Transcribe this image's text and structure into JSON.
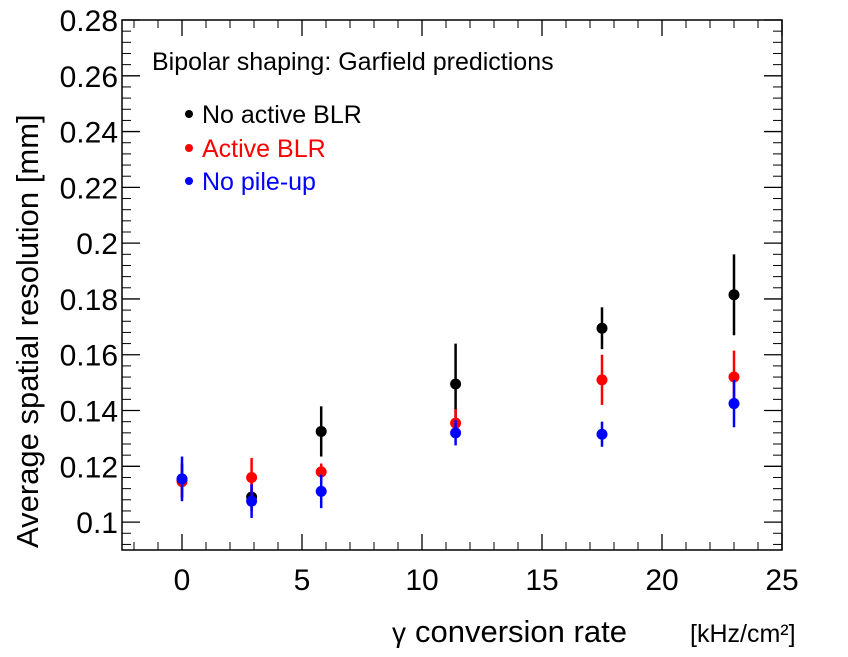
{
  "chart_data": {
    "type": "scatter",
    "title": "Bipolar shaping: Garfield predictions",
    "xlabel_symbol": "γ",
    "xlabel": "conversion rate",
    "xlabel_unit": "[kHz/cm²]",
    "ylabel": "Average spatial resolution [mm]",
    "xlim": [
      -2.5,
      25
    ],
    "ylim": [
      0.09,
      0.28
    ],
    "x_ticks": [
      0,
      5,
      10,
      15,
      20,
      25
    ],
    "x_tick_labels": [
      "0",
      "5",
      "10",
      "15",
      "20",
      "25"
    ],
    "y_ticks": [
      0.1,
      0.12,
      0.14,
      0.16,
      0.18,
      0.2,
      0.22,
      0.24,
      0.26,
      0.28
    ],
    "y_tick_labels": [
      "0.1",
      "0.12",
      "0.14",
      "0.16",
      "0.18",
      "0.2",
      "0.22",
      "0.24",
      "0.26",
      "0.28"
    ],
    "legend_position": "top-left",
    "grid": false,
    "series": [
      {
        "name": "No active BLR",
        "color": "#000000",
        "x": [
          0,
          2.9,
          5.8,
          11.4,
          17.5,
          23
        ],
        "y": [
          0.115,
          0.109,
          0.1325,
          0.1495,
          0.1695,
          0.1815
        ],
        "err": [
          0.006,
          0.005,
          0.009,
          0.0145,
          0.0075,
          0.0145
        ]
      },
      {
        "name": "Active BLR",
        "color": "#ff0000",
        "x": [
          0,
          2.9,
          5.8,
          11.4,
          17.5,
          23
        ],
        "y": [
          0.1145,
          0.116,
          0.118,
          0.1355,
          0.151,
          0.152
        ],
        "err": [
          0.006,
          0.007,
          0.003,
          0.005,
          0.009,
          0.0095
        ]
      },
      {
        "name": "No pile-up",
        "color": "#0000ff",
        "x": [
          0,
          2.9,
          5.8,
          11.4,
          17.5,
          23
        ],
        "y": [
          0.1155,
          0.1075,
          0.111,
          0.132,
          0.1315,
          0.1425
        ],
        "err": [
          0.008,
          0.006,
          0.006,
          0.0045,
          0.0045,
          0.0085
        ]
      }
    ]
  }
}
